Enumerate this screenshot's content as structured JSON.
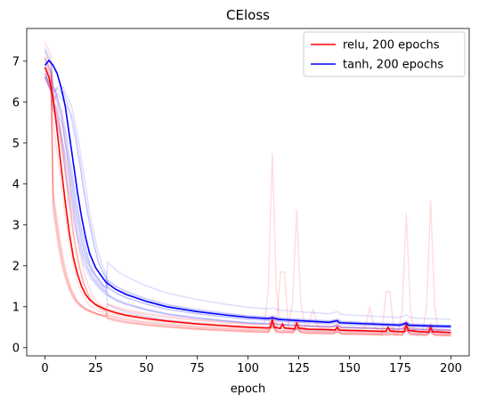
{
  "chart_data": {
    "type": "line",
    "title": "CEloss",
    "xlabel": "epoch",
    "ylabel": "",
    "xlim": [
      -9,
      209
    ],
    "ylim": [
      -0.2,
      7.8
    ],
    "xticks": [
      0,
      25,
      50,
      75,
      100,
      125,
      150,
      175,
      200
    ],
    "yticks": [
      0,
      1,
      2,
      3,
      4,
      5,
      6,
      7
    ],
    "grid": false,
    "legend_position": "top-right",
    "series": [
      {
        "name": "relu, 200 epochs",
        "color": "#ff0000",
        "points": [
          [
            0,
            6.85
          ],
          [
            2,
            6.6
          ],
          [
            4,
            6.1
          ],
          [
            6,
            5.3
          ],
          [
            8,
            4.4
          ],
          [
            10,
            3.55
          ],
          [
            12,
            2.8
          ],
          [
            14,
            2.2
          ],
          [
            16,
            1.8
          ],
          [
            18,
            1.5
          ],
          [
            20,
            1.3
          ],
          [
            22,
            1.17
          ],
          [
            25,
            1.05
          ],
          [
            30,
            0.93
          ],
          [
            35,
            0.85
          ],
          [
            40,
            0.79
          ],
          [
            50,
            0.71
          ],
          [
            60,
            0.65
          ],
          [
            75,
            0.58
          ],
          [
            90,
            0.53
          ],
          [
            100,
            0.5
          ],
          [
            110,
            0.48
          ],
          [
            111,
            0.5
          ],
          [
            112,
            0.68
          ],
          [
            113,
            0.5
          ],
          [
            116,
            0.47
          ],
          [
            117,
            0.58
          ],
          [
            118,
            0.48
          ],
          [
            123,
            0.46
          ],
          [
            124,
            0.6
          ],
          [
            125,
            0.48
          ],
          [
            130,
            0.45
          ],
          [
            140,
            0.44
          ],
          [
            143,
            0.43
          ],
          [
            144,
            0.5
          ],
          [
            145,
            0.43
          ],
          [
            150,
            0.42
          ],
          [
            160,
            0.41
          ],
          [
            165,
            0.4
          ],
          [
            168,
            0.4
          ],
          [
            169,
            0.5
          ],
          [
            170,
            0.41
          ],
          [
            175,
            0.39
          ],
          [
            177,
            0.39
          ],
          [
            178,
            0.56
          ],
          [
            179,
            0.42
          ],
          [
            185,
            0.39
          ],
          [
            189,
            0.38
          ],
          [
            190,
            0.5
          ],
          [
            191,
            0.39
          ],
          [
            200,
            0.37
          ]
        ]
      },
      {
        "name": "tanh, 200 epochs",
        "color": "#0000ff",
        "points": [
          [
            0,
            6.9
          ],
          [
            2,
            7.02
          ],
          [
            4,
            6.9
          ],
          [
            6,
            6.7
          ],
          [
            8,
            6.35
          ],
          [
            10,
            5.9
          ],
          [
            12,
            5.2
          ],
          [
            14,
            4.5
          ],
          [
            16,
            3.8
          ],
          [
            18,
            3.2
          ],
          [
            20,
            2.7
          ],
          [
            22,
            2.3
          ],
          [
            25,
            1.95
          ],
          [
            30,
            1.6
          ],
          [
            35,
            1.42
          ],
          [
            40,
            1.3
          ],
          [
            50,
            1.13
          ],
          [
            60,
            1.0
          ],
          [
            75,
            0.88
          ],
          [
            90,
            0.79
          ],
          [
            100,
            0.74
          ],
          [
            110,
            0.71
          ],
          [
            112,
            0.73
          ],
          [
            115,
            0.69
          ],
          [
            125,
            0.66
          ],
          [
            140,
            0.62
          ],
          [
            144,
            0.66
          ],
          [
            145,
            0.61
          ],
          [
            160,
            0.58
          ],
          [
            175,
            0.55
          ],
          [
            178,
            0.6
          ],
          [
            179,
            0.55
          ],
          [
            190,
            0.53
          ],
          [
            200,
            0.52
          ]
        ]
      }
    ]
  },
  "background_runs": {
    "relu_color": "#ff0000",
    "tanh_color": "#0000ff"
  }
}
